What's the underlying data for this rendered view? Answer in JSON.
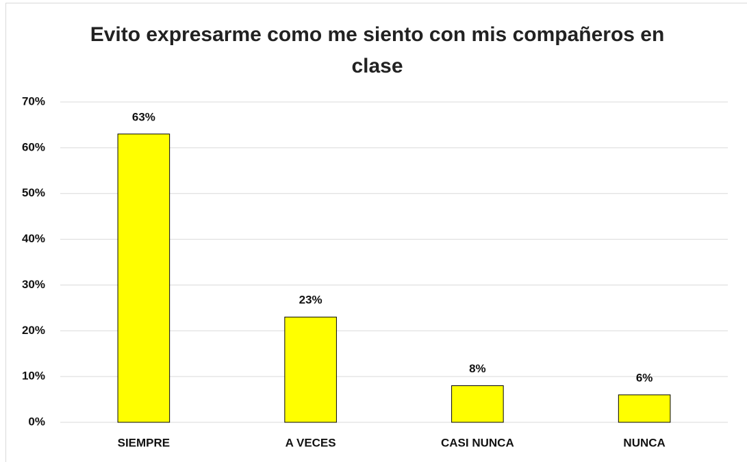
{
  "chart_data": {
    "type": "bar",
    "title": "Evito expresarme como me siento con mis compañeros en clase",
    "categories": [
      "SIEMPRE",
      "A VECES",
      "CASI NUNCA",
      "NUNCA"
    ],
    "values": [
      63,
      23,
      8,
      6
    ],
    "value_labels": [
      "63%",
      "23%",
      "8%",
      "6%"
    ],
    "color": "#ffff00",
    "ylim": [
      0,
      70
    ],
    "yticks": [
      {
        "value": 0,
        "label": "0%"
      },
      {
        "value": 10,
        "label": "10%"
      },
      {
        "value": 20,
        "label": "20%"
      },
      {
        "value": 30,
        "label": "30%"
      },
      {
        "value": 40,
        "label": "40%"
      },
      {
        "value": 50,
        "label": "50%"
      },
      {
        "value": 60,
        "label": "60%"
      },
      {
        "value": 70,
        "label": "70%"
      }
    ],
    "grid": true
  }
}
